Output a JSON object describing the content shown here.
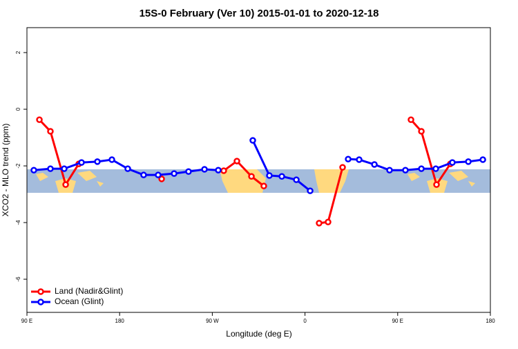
{
  "chart_data": {
    "type": "line",
    "title": "15S-0 February (Ver 10)   2015-01-01 to 2020-12-18",
    "x_label": "Longitude (deg E)",
    "y_label": "XCO2 - MLO trend (ppm)",
    "xlim": [
      90,
      540
    ],
    "ylim": [
      -7.17,
      2.88
    ],
    "xticks": [
      {
        "value": 90,
        "label": "90 E"
      },
      180,
      {
        "value": 270,
        "label": "90 W"
      },
      {
        "value": 360,
        "label": "0"
      },
      {
        "value": 450,
        "label": "90 E"
      },
      {
        "value": 540,
        "label": "180"
      }
    ],
    "yticks": [
      -6,
      -4,
      -2,
      0,
      2
    ],
    "legend": "bottom-left",
    "series": [
      {
        "name": "Land (Nadir&Glint)",
        "color": "#ff0000",
        "x": [
          102.1,
          112.8,
          127.6,
          140.3,
          null,
          220.8,
          null,
          281.1,
          293.9,
          308.0,
          320.0,
          null,
          373.7,
          382.4,
          396.5,
          null,
          462.9,
          473.0,
          487.7,
          501.1
        ],
        "values": [
          -0.37,
          -0.78,
          -2.66,
          -1.93,
          null,
          -2.46,
          null,
          -2.17,
          -1.83,
          -2.37,
          -2.71,
          null,
          -4.02,
          -3.98,
          -2.05,
          null,
          -0.37,
          -0.78,
          -2.66,
          -1.93
        ]
      },
      {
        "name": "Ocean (Glint)",
        "color": "#0000ff",
        "x": [
          96.7,
          112.8,
          126.2,
          143.0,
          158.4,
          172.5,
          187.9,
          203.3,
          217.4,
          232.9,
          246.9,
          262.4,
          275.8,
          null,
          309.3,
          325.4,
          337.5,
          351.6,
          365.0,
          null,
          401.9,
          412.6,
          427.4,
          442.1,
          457.5,
          473.0,
          487.0,
          503.1,
          518.6,
          532.7
        ],
        "values": [
          -2.15,
          -2.1,
          -2.1,
          -1.88,
          -1.85,
          -1.78,
          -2.1,
          -2.32,
          -2.32,
          -2.27,
          -2.2,
          -2.12,
          -2.15,
          null,
          -1.1,
          -2.34,
          -2.37,
          -2.49,
          -2.88,
          null,
          -1.76,
          -1.78,
          -1.95,
          -2.15,
          -2.15,
          -2.1,
          -2.1,
          -1.88,
          -1.85,
          -1.78
        ]
      }
    ]
  }
}
